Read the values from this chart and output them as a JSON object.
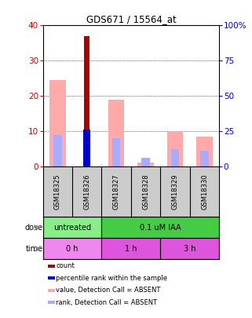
{
  "title": "GDS671 / 15564_at",
  "samples": [
    "GSM18325",
    "GSM18326",
    "GSM18327",
    "GSM18328",
    "GSM18329",
    "GSM18330"
  ],
  "left_ylim": [
    0,
    40
  ],
  "right_ylim": [
    0,
    100
  ],
  "left_ticks": [
    0,
    10,
    20,
    30,
    40
  ],
  "right_ticks": [
    0,
    25,
    50,
    75,
    100
  ],
  "right_tick_labels": [
    "0",
    "25",
    "50",
    "75",
    "100%"
  ],
  "count_values": [
    0,
    37,
    0,
    0,
    0,
    0
  ],
  "count_color": "#aa0000",
  "percentile_rank_values": [
    0,
    10.5,
    0,
    0,
    0,
    0
  ],
  "percentile_rank_color": "#0000cc",
  "value_absent_values": [
    24.5,
    0,
    19.0,
    1.2,
    10.0,
    8.5
  ],
  "value_absent_color": "#ffaaaa",
  "rank_absent_values": [
    9.0,
    0,
    8.0,
    2.5,
    5.0,
    4.5
  ],
  "rank_absent_color": "#aaaaff",
  "sample_bg_color": "#cccccc",
  "left_color": "#cc0000",
  "right_color": "#0000cc",
  "dose_groups": [
    {
      "label": "untreated",
      "start": 0,
      "end": 1,
      "color": "#88ee88"
    },
    {
      "label": "0.1 uM IAA",
      "start": 2,
      "end": 5,
      "color": "#44cc44"
    }
  ],
  "time_groups": [
    {
      "label": "0 h",
      "start": 0,
      "end": 1,
      "color": "#ee88ee"
    },
    {
      "label": "1 h",
      "start": 2,
      "end": 3,
      "color": "#dd55dd"
    },
    {
      "label": "3 h",
      "start": 4,
      "end": 5,
      "color": "#dd55dd"
    }
  ],
  "legend_items": [
    {
      "color": "#aa0000",
      "label": "count"
    },
    {
      "color": "#0000cc",
      "label": "percentile rank within the sample"
    },
    {
      "color": "#ffaaaa",
      "label": "value, Detection Call = ABSENT"
    },
    {
      "color": "#aaaaff",
      "label": "rank, Detection Call = ABSENT"
    }
  ]
}
